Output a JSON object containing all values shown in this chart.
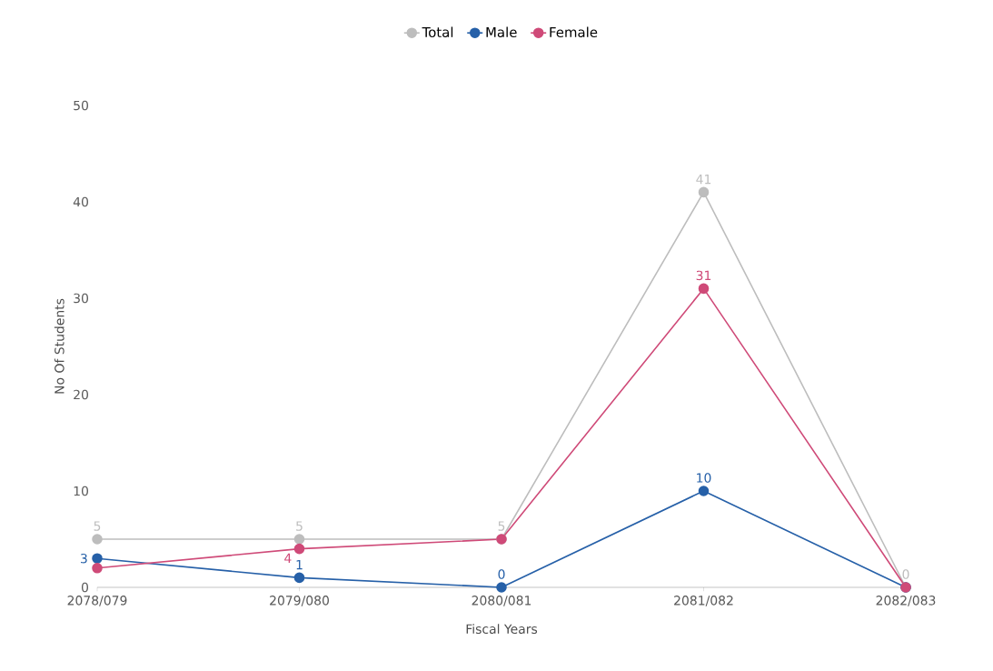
{
  "chart_data": {
    "type": "line",
    "xlabel": "Fiscal Years",
    "ylabel": "No Of Students",
    "categories": [
      "2078/079",
      "2079/080",
      "2080/081",
      "2081/082",
      "2082/083"
    ],
    "series": [
      {
        "name": "Total",
        "color": "#bdbdbd",
        "values": [
          5,
          5,
          5,
          41,
          0
        ],
        "value_labels": [
          "5",
          "5",
          "5",
          "41",
          "0"
        ]
      },
      {
        "name": "Male",
        "color": "#2660a8",
        "values": [
          3,
          1,
          0,
          10,
          0
        ],
        "value_labels": [
          "3",
          "1",
          "0",
          "10",
          null
        ]
      },
      {
        "name": "Female",
        "color": "#cf4a78",
        "values": [
          2,
          4,
          5,
          31,
          0
        ],
        "value_labels": [
          null,
          "4",
          null,
          "31",
          null
        ]
      }
    ],
    "ylim": [
      0,
      50
    ],
    "yticks": [
      0,
      10,
      20,
      30,
      40,
      50
    ],
    "grid": false,
    "legend": "top",
    "marker": "circle",
    "line_style": "solid"
  }
}
